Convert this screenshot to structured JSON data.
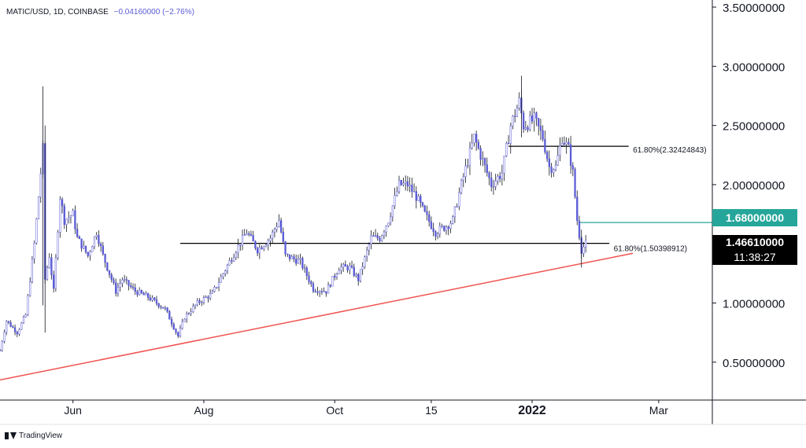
{
  "header": {
    "symbol": "MATIC/USD, 1D, COINBASE",
    "change": "−0.04160000 (−2.76%)"
  },
  "footer": {
    "brand": "TradingView"
  },
  "price_tags": {
    "level": {
      "value": "1.68000000",
      "color": "#26a69a"
    },
    "last": {
      "value": "1.46610000",
      "countdown": "11:38:27",
      "color": "#000000"
    }
  },
  "colors": {
    "candle": "#5b5bd6",
    "trendline": "#ef5350",
    "level_line": "#26a69a",
    "hline": "#000000"
  },
  "chart_data": {
    "type": "candlestick",
    "title": "MATIC/USD, 1D, COINBASE",
    "yaxis": {
      "ticks": [
        "3.50000000",
        "3.00000000",
        "2.50000000",
        "2.00000000",
        "1.00000000",
        "0.50000000"
      ],
      "ylim": [
        0.18,
        3.56
      ],
      "side": "right"
    },
    "xaxis": {
      "ticks": [
        "Jun",
        "Aug",
        "Oct",
        "15",
        "2022",
        "Mar"
      ],
      "bold_tick": "2022",
      "range": [
        "2021-04-28",
        "2022-03-26"
      ]
    },
    "price_path": [
      [
        "2021-04-28",
        0.6
      ],
      [
        "2021-05-01",
        0.85
      ],
      [
        "2021-05-06",
        0.75
      ],
      [
        "2021-05-10",
        0.9
      ],
      [
        "2021-05-14",
        1.5
      ],
      [
        "2021-05-16",
        1.9
      ],
      [
        "2021-05-18",
        2.3
      ],
      [
        "2021-05-19",
        1.2
      ],
      [
        "2021-05-21",
        1.4
      ],
      [
        "2021-05-23",
        1.1
      ],
      [
        "2021-05-26",
        1.9
      ],
      [
        "2021-05-28",
        1.7
      ],
      [
        "2021-06-01",
        1.75
      ],
      [
        "2021-06-03",
        1.55
      ],
      [
        "2021-06-08",
        1.4
      ],
      [
        "2021-06-12",
        1.6
      ],
      [
        "2021-06-15",
        1.4
      ],
      [
        "2021-06-21",
        1.1
      ],
      [
        "2021-06-24",
        1.2
      ],
      [
        "2021-06-30",
        1.1
      ],
      [
        "2021-07-06",
        1.05
      ],
      [
        "2021-07-14",
        0.95
      ],
      [
        "2021-07-20",
        0.72
      ],
      [
        "2021-07-23",
        0.88
      ],
      [
        "2021-07-29",
        1.0
      ],
      [
        "2021-08-05",
        1.08
      ],
      [
        "2021-08-10",
        1.25
      ],
      [
        "2021-08-16",
        1.45
      ],
      [
        "2021-08-21",
        1.6
      ],
      [
        "2021-08-26",
        1.45
      ],
      [
        "2021-09-01",
        1.55
      ],
      [
        "2021-09-05",
        1.7
      ],
      [
        "2021-09-08",
        1.4
      ],
      [
        "2021-09-15",
        1.35
      ],
      [
        "2021-09-21",
        1.12
      ],
      [
        "2021-09-27",
        1.1
      ],
      [
        "2021-10-03",
        1.3
      ],
      [
        "2021-10-08",
        1.3
      ],
      [
        "2021-10-12",
        1.2
      ],
      [
        "2021-10-18",
        1.55
      ],
      [
        "2021-10-22",
        1.55
      ],
      [
        "2021-10-26",
        1.7
      ],
      [
        "2021-10-31",
        2.0
      ],
      [
        "2021-11-04",
        2.0
      ],
      [
        "2021-11-08",
        1.9
      ],
      [
        "2021-11-12",
        1.75
      ],
      [
        "2021-11-17",
        1.6
      ],
      [
        "2021-11-22",
        1.65
      ],
      [
        "2021-11-25",
        1.7
      ],
      [
        "2021-11-29",
        2.0
      ],
      [
        "2021-12-02",
        2.2
      ],
      [
        "2021-12-05",
        2.4
      ],
      [
        "2021-12-09",
        2.2
      ],
      [
        "2021-12-13",
        2.0
      ],
      [
        "2021-12-18",
        2.1
      ],
      [
        "2021-12-22",
        2.5
      ],
      [
        "2021-12-26",
        2.7
      ],
      [
        "2021-12-28",
        2.5
      ],
      [
        "2022-01-02",
        2.55
      ],
      [
        "2022-01-06",
        2.4
      ],
      [
        "2022-01-09",
        2.15
      ],
      [
        "2022-01-12",
        2.15
      ],
      [
        "2022-01-15",
        2.4
      ],
      [
        "2022-01-18",
        2.3
      ],
      [
        "2022-01-20",
        2.1
      ],
      [
        "2022-01-22",
        1.7
      ],
      [
        "2022-01-24",
        1.45
      ],
      [
        "2022-01-26",
        1.5
      ]
    ],
    "annotations": {
      "fib_upper": {
        "label": "61.80%(2.32424843)",
        "value": 2.32424843
      },
      "fib_lower": {
        "label": "61.80%(1.50398912)",
        "value": 1.50398912
      },
      "level": 1.68,
      "trendline": [
        [
          "2021-04-28",
          0.35
        ],
        [
          "2022-02-17",
          1.42
        ]
      ]
    }
  }
}
